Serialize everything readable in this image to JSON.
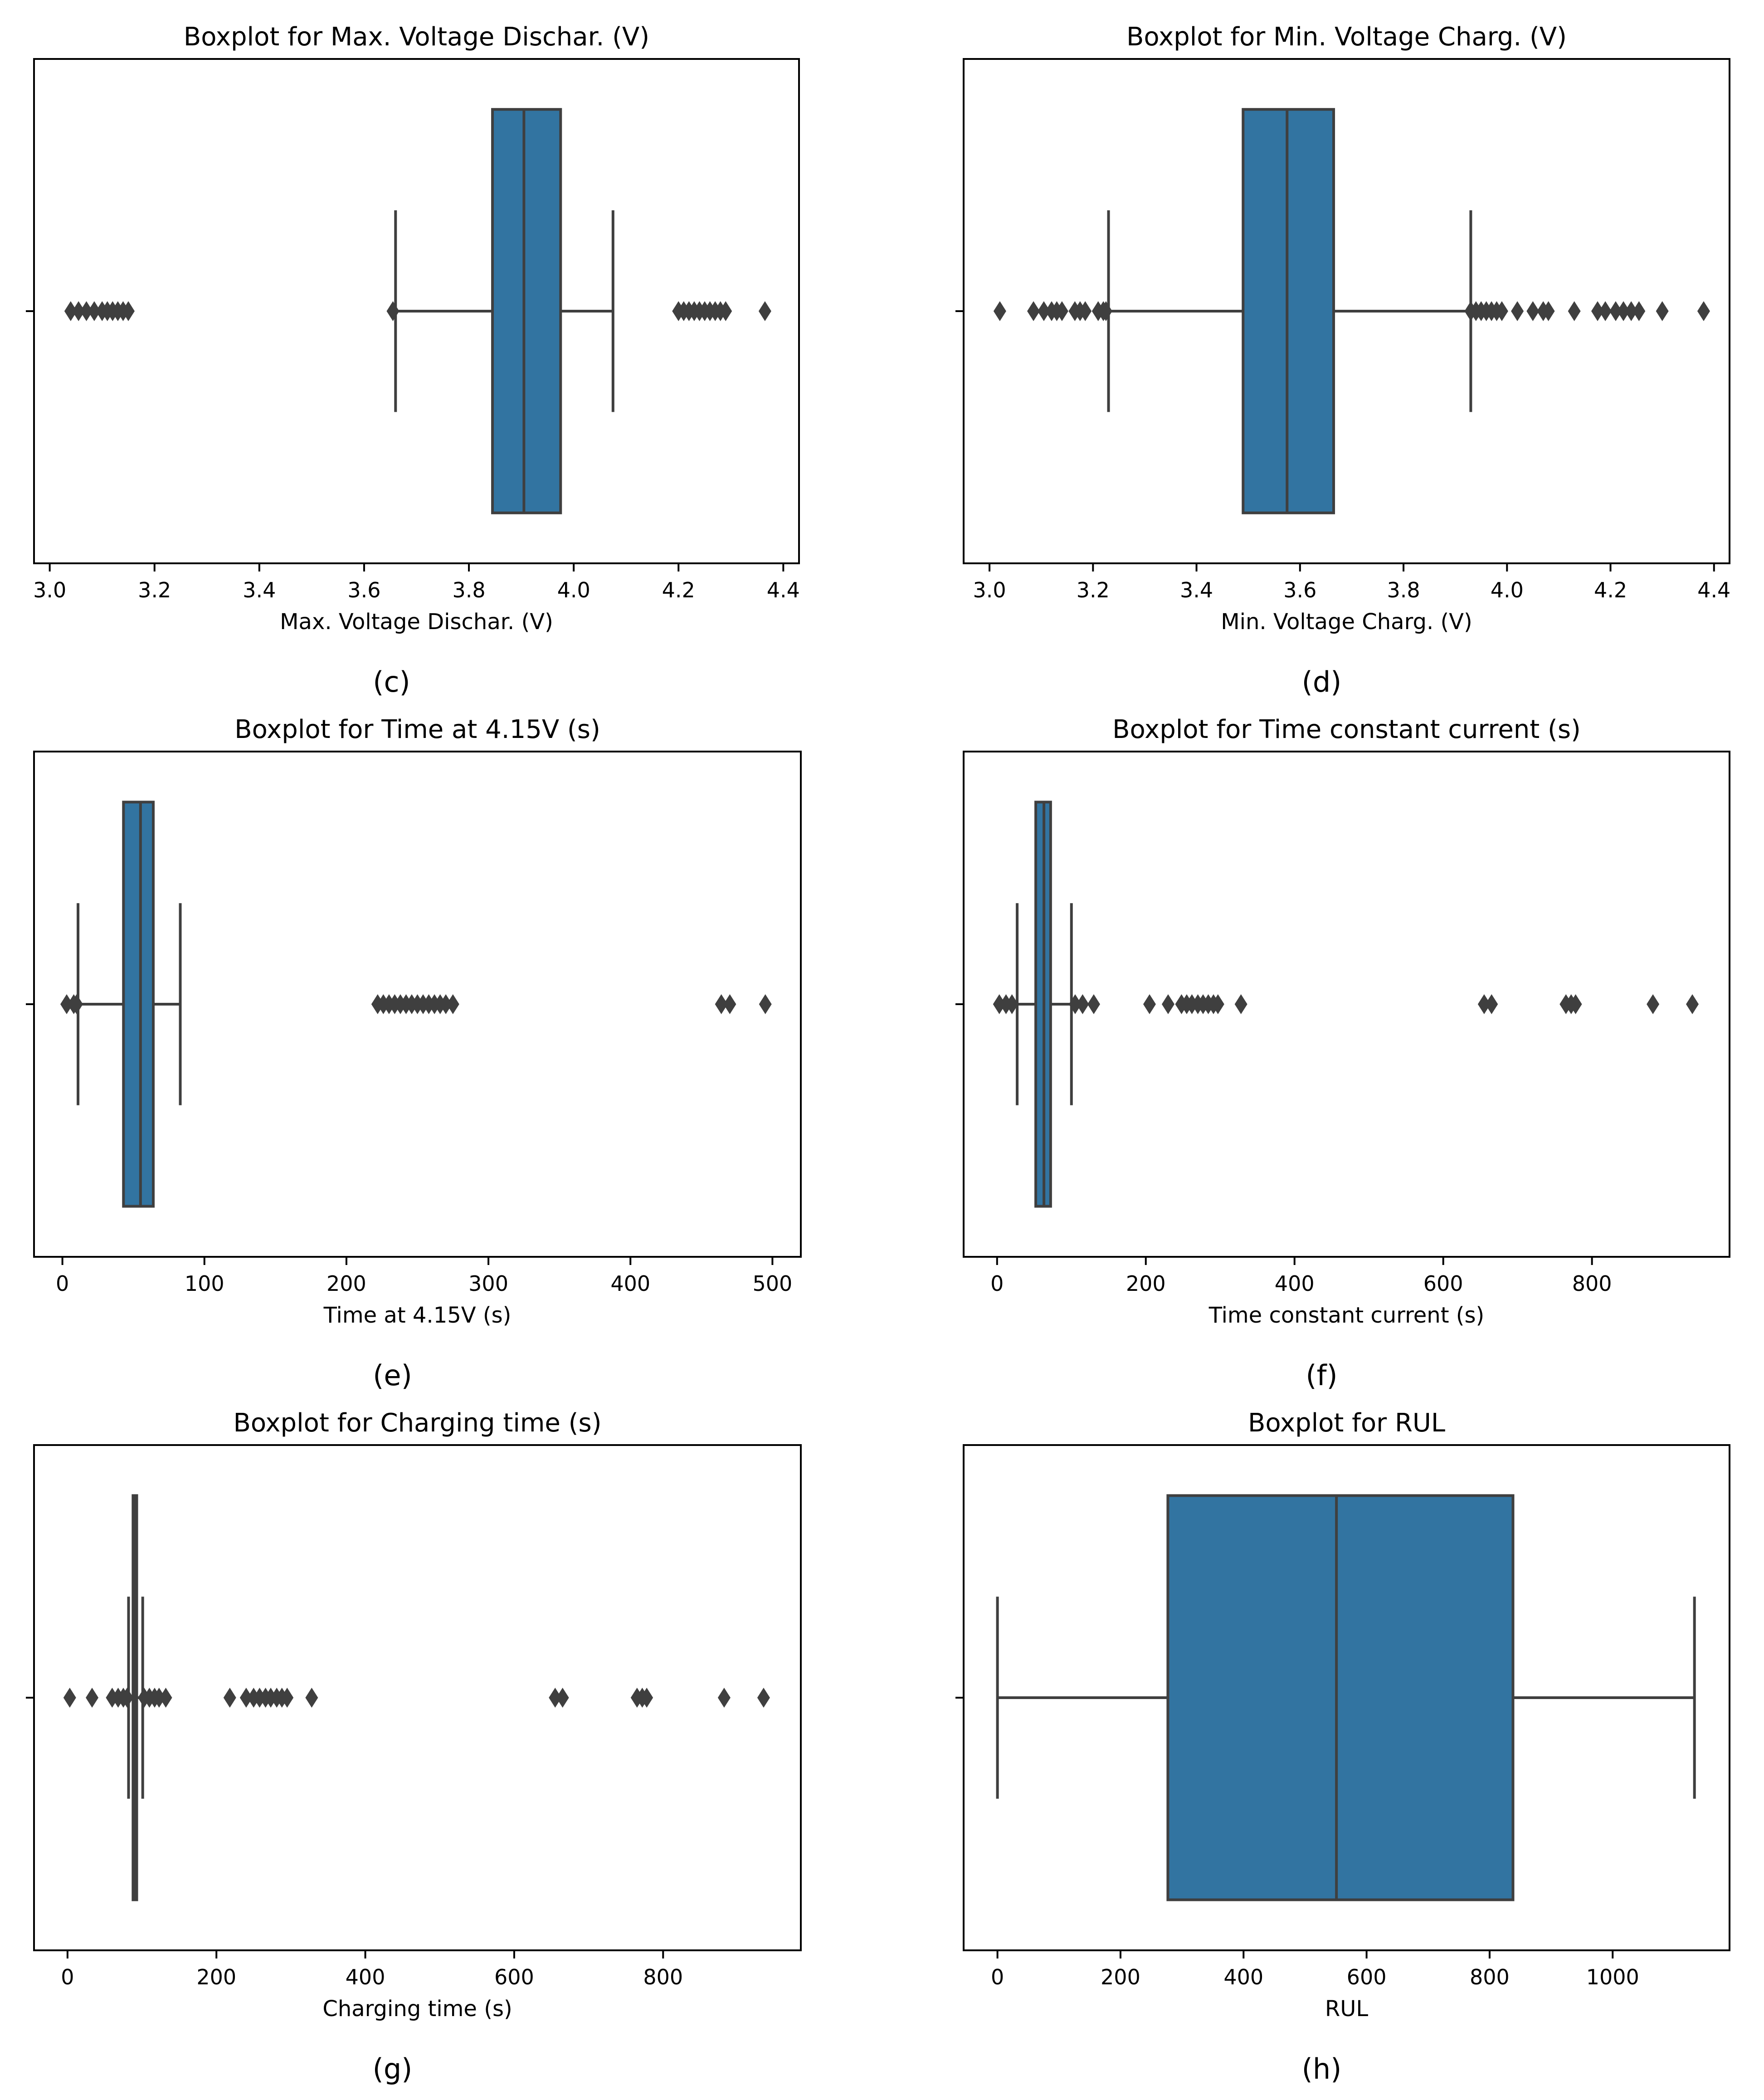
{
  "chart_data": [
    {
      "type": "boxplot",
      "panel_label": "(c)",
      "title": "Boxplot for Max. Voltage Dischar. (V)",
      "xlabel": "Max. Voltage Dischar. (V)",
      "xlim": [
        2.97,
        4.43
      ],
      "xticks": [
        3.0,
        3.2,
        3.4,
        3.6,
        3.8,
        4.0,
        4.2,
        4.4
      ],
      "xtick_labels": [
        "3.0",
        "3.2",
        "3.4",
        "3.6",
        "3.8",
        "4.0",
        "4.2",
        "4.4"
      ],
      "box": {
        "whisker_low": 3.66,
        "q1": 3.845,
        "median": 3.905,
        "q3": 3.975,
        "whisker_high": 4.075
      },
      "outliers": [
        3.04,
        3.055,
        3.07,
        3.085,
        3.1,
        3.11,
        3.12,
        3.13,
        3.14,
        3.15,
        3.655,
        4.2,
        4.21,
        4.22,
        4.23,
        4.24,
        4.25,
        4.26,
        4.27,
        4.28,
        4.29,
        4.365
      ]
    },
    {
      "type": "boxplot",
      "panel_label": "(d)",
      "title": "Boxplot for Min. Voltage Charg. (V)",
      "xlabel": "Min. Voltage Charg. (V)",
      "xlim": [
        2.95,
        4.43
      ],
      "xticks": [
        3.0,
        3.2,
        3.4,
        3.6,
        3.8,
        4.0,
        4.2,
        4.4
      ],
      "xtick_labels": [
        "3.0",
        "3.2",
        "3.4",
        "3.6",
        "3.8",
        "4.0",
        "4.2",
        "4.4"
      ],
      "box": {
        "whisker_low": 3.23,
        "q1": 3.49,
        "median": 3.575,
        "q3": 3.665,
        "whisker_high": 3.93
      },
      "outliers": [
        3.02,
        3.085,
        3.105,
        3.12,
        3.13,
        3.14,
        3.165,
        3.175,
        3.185,
        3.21,
        3.22,
        3.225,
        3.93,
        3.94,
        3.95,
        3.96,
        3.97,
        3.98,
        3.99,
        4.02,
        4.05,
        4.07,
        4.08,
        4.13,
        4.175,
        4.19,
        4.21,
        4.225,
        4.24,
        4.255,
        4.3,
        4.38
      ]
    },
    {
      "type": "boxplot",
      "panel_label": "(e)",
      "title": "Boxplot for Time at 4.15V (s)",
      "xlabel": "Time at 4.15V (s)",
      "xlim": [
        -20,
        520
      ],
      "xticks": [
        0,
        100,
        200,
        300,
        400,
        500
      ],
      "xtick_labels": [
        "0",
        "100",
        "200",
        "300",
        "400",
        "500"
      ],
      "box": {
        "whisker_low": 11,
        "q1": 43,
        "median": 55,
        "q3": 64,
        "whisker_high": 83
      },
      "outliers": [
        3,
        8,
        10,
        222,
        226,
        230,
        234,
        238,
        242,
        246,
        250,
        254,
        258,
        262,
        266,
        270,
        275,
        464,
        470,
        495
      ]
    },
    {
      "type": "boxplot",
      "panel_label": "(f)",
      "title": "Boxplot for Time constant current (s)",
      "xlabel": "Time constant current (s)",
      "xlim": [
        -45,
        985
      ],
      "xticks": [
        0,
        200,
        400,
        600,
        800
      ],
      "xtick_labels": [
        "0",
        "200",
        "400",
        "600",
        "800"
      ],
      "box": {
        "whisker_low": 27,
        "q1": 52,
        "median": 63,
        "q3": 72,
        "whisker_high": 100
      },
      "outliers": [
        3,
        12,
        20,
        105,
        115,
        130,
        205,
        230,
        248,
        255,
        262,
        270,
        277,
        284,
        291,
        297,
        328,
        655,
        665,
        765,
        772,
        778,
        882,
        935
      ]
    },
    {
      "type": "boxplot",
      "panel_label": "(g)",
      "title": "Boxplot for Charging time (s)",
      "xlabel": "Charging time (s)",
      "xlim": [
        -45,
        985
      ],
      "xticks": [
        0,
        200,
        400,
        600,
        800
      ],
      "xtick_labels": [
        "0",
        "200",
        "400",
        "600",
        "800"
      ],
      "box": {
        "whisker_low": 82,
        "q1": 88,
        "median": 91,
        "q3": 93,
        "whisker_high": 101
      },
      "outliers": [
        3,
        33,
        60,
        68,
        75,
        80,
        103,
        110,
        117,
        123,
        132,
        218,
        240,
        250,
        258,
        266,
        273,
        281,
        288,
        295,
        328,
        655,
        665,
        765,
        772,
        778,
        882,
        935
      ]
    },
    {
      "type": "boxplot",
      "panel_label": "(h)",
      "title": "Boxplot for RUL",
      "xlabel": "RUL",
      "xlim": [
        -55,
        1190
      ],
      "xticks": [
        0,
        200,
        400,
        600,
        800,
        1000
      ],
      "xtick_labels": [
        "0",
        "200",
        "400",
        "600",
        "800",
        "1000"
      ],
      "box": {
        "whisker_low": 0,
        "q1": 277,
        "median": 551,
        "q3": 838,
        "whisker_high": 1133
      },
      "outliers": []
    }
  ],
  "style": {
    "box_fill": "#3274a1",
    "line_color": "#3f3f3f",
    "frame_color": "#000000",
    "outlier_marker": "diamond"
  }
}
